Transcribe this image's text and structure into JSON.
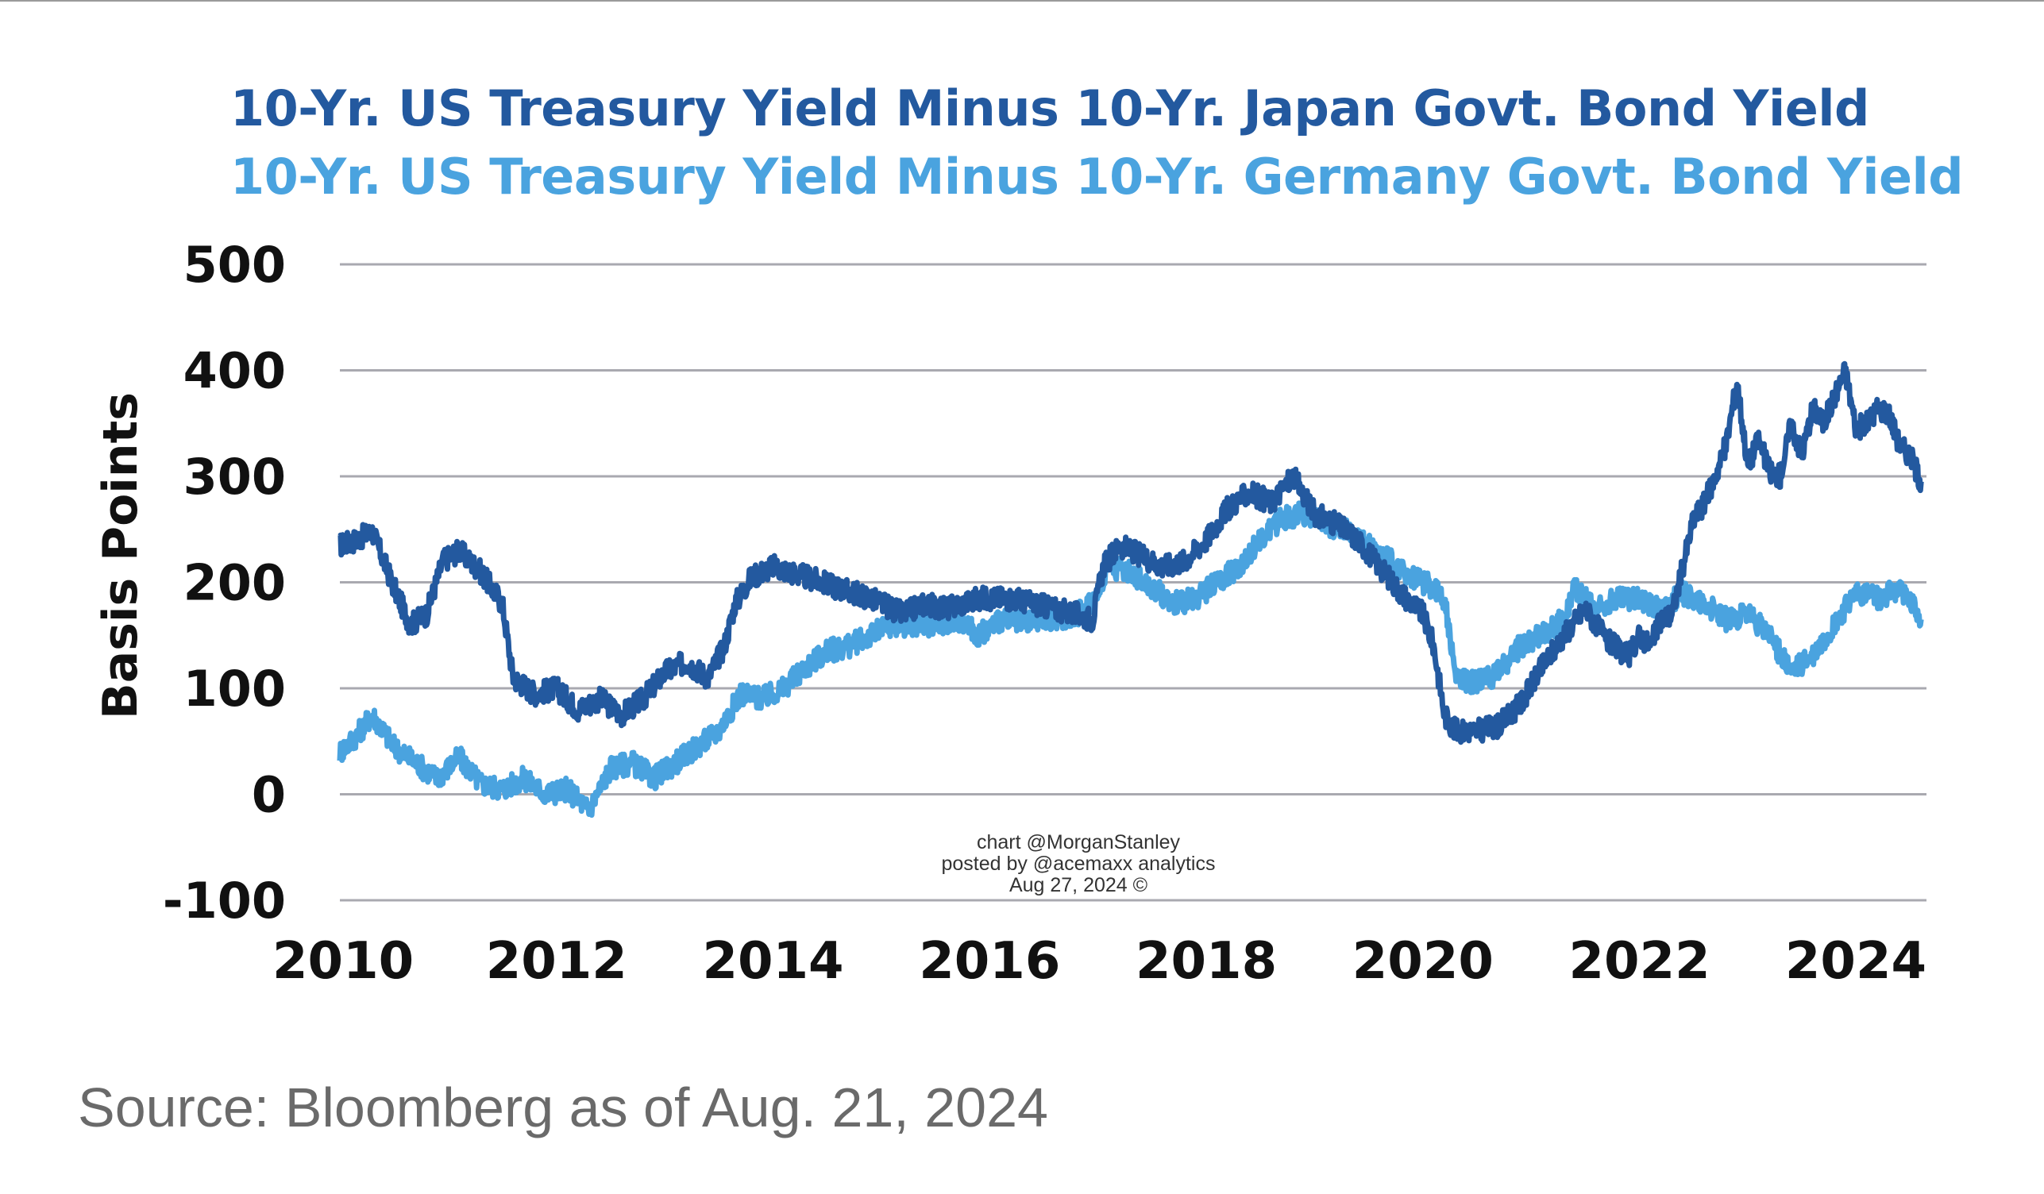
{
  "chart_data": {
    "type": "line",
    "legend": [
      "10-Yr. US Treasury Yield Minus 10-Yr. Japan Govt. Bond Yield",
      "10-Yr. US Treasury Yield Minus 10-Yr. Germany Govt. Bond Yield"
    ],
    "ylabel": "Basis Points",
    "xlabel": "",
    "ylim": [
      -100,
      500
    ],
    "xlim": [
      2010,
      2024.65
    ],
    "yticks": [
      "500",
      "400",
      "300",
      "200",
      "100",
      "0",
      "-100"
    ],
    "xticks": [
      "2010",
      "2012",
      "2014",
      "2016",
      "2018",
      "2020",
      "2022",
      "2024"
    ],
    "grid": "horizontal",
    "legend_placement": "top",
    "watermark": [
      "chart @MorganStanley",
      "posted by @acemaxx analytics",
      "Aug 27, 2024 ©"
    ],
    "series": [
      {
        "name": "10-Yr. US Treasury Yield Minus 10-Yr. Japan Govt. Bond Yield",
        "color": "#23599f",
        "x": [
          2010.0,
          2010.15,
          2010.3,
          2010.5,
          2010.65,
          2010.8,
          2010.95,
          2011.1,
          2011.3,
          2011.5,
          2011.6,
          2011.8,
          2012.0,
          2012.2,
          2012.4,
          2012.6,
          2012.8,
          2013.0,
          2013.2,
          2013.4,
          2013.55,
          2013.65,
          2013.8,
          2014.0,
          2014.3,
          2014.6,
          2014.9,
          2015.2,
          2015.4,
          2015.6,
          2015.9,
          2016.2,
          2016.4,
          2016.6,
          2016.8,
          2016.95,
          2017.05,
          2017.2,
          2017.4,
          2017.6,
          2017.8,
          2018.0,
          2018.2,
          2018.4,
          2018.6,
          2018.8,
          2019.0,
          2019.2,
          2019.4,
          2019.6,
          2019.8,
          2020.0,
          2020.1,
          2020.2,
          2020.3,
          2020.5,
          2020.7,
          2020.9,
          2021.1,
          2021.3,
          2021.5,
          2021.7,
          2021.9,
          2022.0,
          2022.1,
          2022.2,
          2022.3,
          2022.4,
          2022.5,
          2022.6,
          2022.7,
          2022.8,
          2022.9,
          2023.0,
          2023.1,
          2023.2,
          2023.3,
          2023.4,
          2023.5,
          2023.6,
          2023.7,
          2023.8,
          2023.9,
          2024.0,
          2024.1,
          2024.2,
          2024.3,
          2024.4,
          2024.5,
          2024.6
        ],
        "values": [
          235,
          240,
          248,
          195,
          160,
          170,
          220,
          230,
          210,
          180,
          110,
          95,
          100,
          80,
          90,
          75,
          90,
          115,
          125,
          110,
          140,
          180,
          205,
          215,
          205,
          195,
          185,
          170,
          180,
          175,
          185,
          185,
          180,
          175,
          170,
          165,
          215,
          235,
          225,
          215,
          220,
          240,
          270,
          285,
          275,
          300,
          265,
          255,
          240,
          215,
          190,
          170,
          140,
          75,
          60,
          60,
          65,
          85,
          120,
          150,
          175,
          145,
          130,
          150,
          140,
          165,
          170,
          215,
          260,
          275,
          300,
          330,
          390,
          310,
          335,
          305,
          300,
          350,
          320,
          365,
          350,
          375,
          400,
          345,
          350,
          365,
          360,
          330,
          320,
          295
        ]
      },
      {
        "name": "10-Yr. US Treasury Yield Minus 10-Yr. Germany Govt. Bond Yield",
        "color": "#4aa3df",
        "x": [
          2010.0,
          2010.15,
          2010.3,
          2010.5,
          2010.7,
          2010.9,
          2011.1,
          2011.3,
          2011.5,
          2011.7,
          2011.9,
          2012.1,
          2012.3,
          2012.5,
          2012.7,
          2012.9,
          2013.1,
          2013.3,
          2013.5,
          2013.7,
          2013.9,
          2014.1,
          2014.3,
          2014.5,
          2014.7,
          2014.9,
          2015.1,
          2015.3,
          2015.5,
          2015.7,
          2015.9,
          2016.1,
          2016.3,
          2016.5,
          2016.7,
          2016.9,
          2017.1,
          2017.3,
          2017.5,
          2017.7,
          2017.9,
          2018.1,
          2018.3,
          2018.5,
          2018.7,
          2018.9,
          2019.1,
          2019.3,
          2019.5,
          2019.7,
          2019.9,
          2020.1,
          2020.2,
          2020.3,
          2020.5,
          2020.7,
          2020.9,
          2021.1,
          2021.3,
          2021.4,
          2021.6,
          2021.8,
          2022.0,
          2022.2,
          2022.4,
          2022.6,
          2022.8,
          2023.0,
          2023.2,
          2023.4,
          2023.6,
          2023.8,
          2024.0,
          2024.2,
          2024.4,
          2024.6
        ],
        "values": [
          40,
          55,
          75,
          45,
          30,
          15,
          35,
          10,
          5,
          15,
          0,
          5,
          -15,
          25,
          30,
          15,
          30,
          45,
          60,
          95,
          90,
          100,
          120,
          135,
          140,
          150,
          160,
          160,
          160,
          165,
          150,
          165,
          160,
          165,
          165,
          175,
          215,
          210,
          195,
          180,
          185,
          200,
          215,
          240,
          260,
          265,
          255,
          250,
          235,
          220,
          205,
          195,
          185,
          110,
          105,
          115,
          140,
          150,
          165,
          195,
          175,
          185,
          185,
          175,
          190,
          180,
          165,
          170,
          150,
          115,
          130,
          160,
          190,
          185,
          195,
          165
        ]
      }
    ]
  },
  "source": "Source: Bloomberg as of Aug. 21, 2024"
}
